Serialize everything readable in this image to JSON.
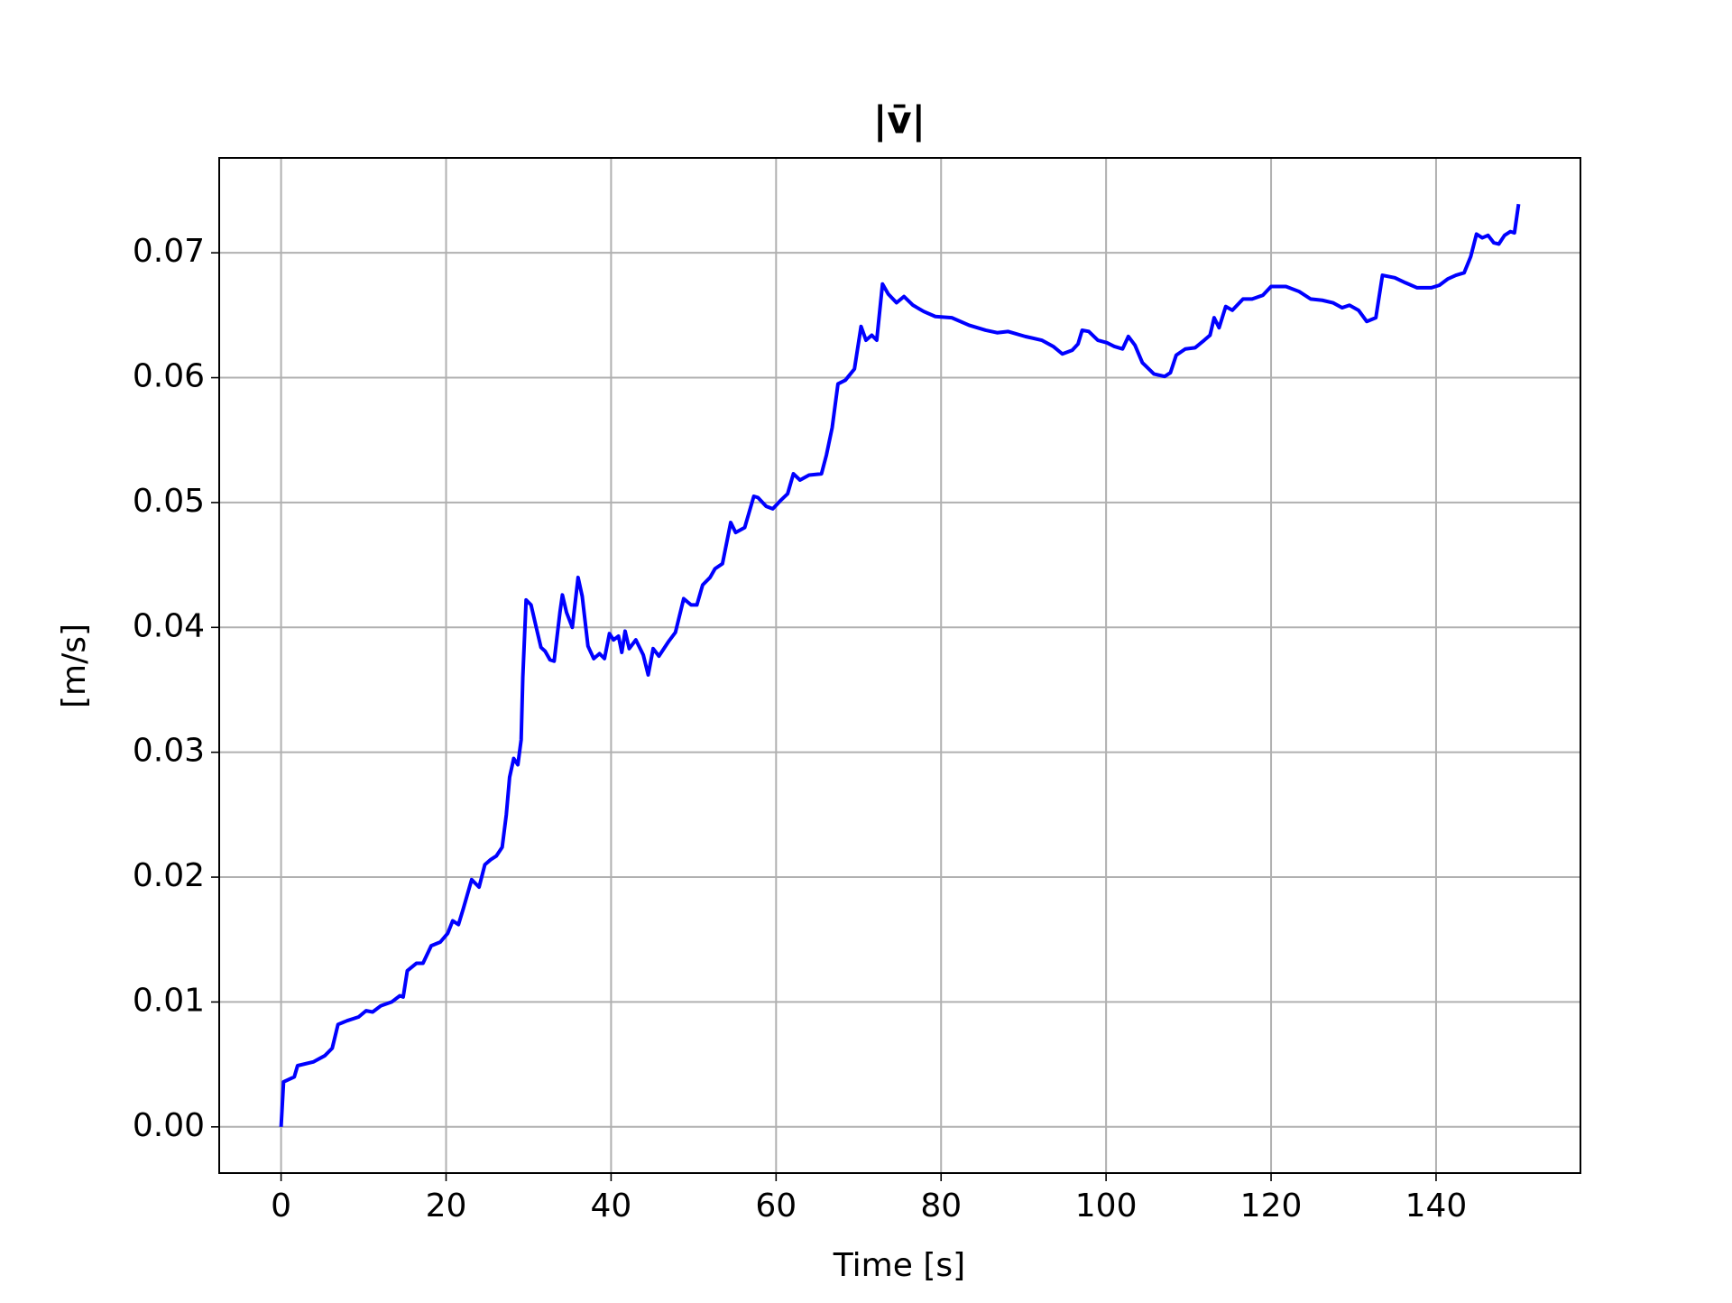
{
  "chart_data": {
    "type": "line",
    "title": "|v̄|",
    "xlabel": "Time [s]",
    "ylabel": "[m/s]",
    "xlim": [
      -7.5,
      157.5
    ],
    "ylim": [
      -0.0037,
      0.0776
    ],
    "xticks": [
      0,
      20,
      40,
      60,
      80,
      100,
      120,
      140
    ],
    "yticks": [
      {
        "value": 0,
        "label": "0.00"
      },
      0.01,
      0.02,
      0.03,
      0.04,
      0.05,
      0.06,
      0.07
    ],
    "grid": true,
    "series": [
      {
        "color": "#0000ff",
        "x": [
          0,
          0.3,
          1.6,
          2.0,
          3.9,
          5.3,
          6.2,
          6.9,
          8.0,
          9.4,
          10.3,
          11.1,
          12.1,
          13.4,
          14.4,
          14.8,
          15.3,
          16.4,
          17.2,
          18.2,
          19.3,
          20.2,
          20.8,
          21.5,
          22.1,
          23.1,
          24.0,
          24.7,
          25.4,
          26.1,
          26.8,
          27.3,
          27.7,
          28.2,
          28.7,
          29.1,
          29.3,
          29.7,
          30.3,
          31.0,
          31.5,
          32.0,
          32.6,
          33.1,
          33.8,
          34.1,
          34.6,
          35.3,
          36.0,
          36.5,
          37.2,
          37.9,
          38.6,
          39.2,
          39.8,
          40.3,
          40.9,
          41.3,
          41.7,
          42.2,
          43.0,
          43.9,
          44.5,
          45.1,
          45.8,
          47.0,
          47.8,
          48.8,
          49.7,
          50.4,
          51.1,
          52.0,
          52.6,
          53.5,
          54.5,
          55.1,
          56.2,
          57.3,
          57.8,
          58.8,
          59.6,
          60.6,
          61.4,
          62.1,
          62.9,
          64.0,
          65.5,
          66.1,
          66.8,
          67.5,
          68.4,
          69.5,
          70.3,
          70.9,
          71.6,
          72.2,
          72.9,
          73.6,
          74.6,
          75.5,
          76.6,
          77.9,
          79.3,
          81.3,
          83.4,
          85.4,
          86.8,
          88.1,
          90.2,
          92.2,
          93.6,
          94.7,
          95.9,
          96.6,
          97.1,
          97.9,
          99.0,
          100.1,
          101.0,
          102.0,
          102.7,
          103.5,
          104.4,
          105.8,
          107.1,
          107.8,
          108.5,
          109.6,
          110.8,
          111.9,
          112.6,
          113.1,
          113.7,
          114.5,
          115.3,
          116.6,
          117.7,
          119.0,
          120.0,
          121.8,
          123.4,
          124.8,
          126.2,
          127.5,
          128.6,
          129.5,
          130.6,
          131.6,
          132.7,
          133.5,
          135.0,
          136.3,
          137.7,
          139.4,
          140.4,
          141.4,
          142.4,
          143.4,
          144.2,
          144.9,
          145.6,
          146.3,
          147.0,
          147.6,
          148.3,
          149.0,
          149.5,
          150.0
        ],
        "values": [
          0,
          0.0036,
          0.004,
          0.0049,
          0.0052,
          0.0057,
          0.0063,
          0.0082,
          0.0085,
          0.0088,
          0.0093,
          0.0092,
          0.0097,
          0.01,
          0.0105,
          0.0104,
          0.0125,
          0.0131,
          0.0131,
          0.0145,
          0.0148,
          0.0155,
          0.0165,
          0.0162,
          0.0175,
          0.0198,
          0.0192,
          0.021,
          0.0214,
          0.0217,
          0.0224,
          0.025,
          0.028,
          0.0295,
          0.029,
          0.031,
          0.036,
          0.0422,
          0.0418,
          0.0398,
          0.0384,
          0.0381,
          0.0374,
          0.0373,
          0.0412,
          0.0426,
          0.0412,
          0.04,
          0.044,
          0.0425,
          0.0385,
          0.0375,
          0.0379,
          0.0375,
          0.0395,
          0.039,
          0.0393,
          0.038,
          0.0397,
          0.0383,
          0.039,
          0.0378,
          0.0362,
          0.0383,
          0.0377,
          0.0389,
          0.0396,
          0.0423,
          0.0418,
          0.0418,
          0.0434,
          0.044,
          0.0447,
          0.0451,
          0.0484,
          0.0476,
          0.048,
          0.0505,
          0.0504,
          0.0497,
          0.0495,
          0.0502,
          0.0507,
          0.0523,
          0.0518,
          0.0522,
          0.0523,
          0.0538,
          0.056,
          0.0595,
          0.0598,
          0.0607,
          0.0641,
          0.063,
          0.0634,
          0.063,
          0.0675,
          0.0667,
          0.066,
          0.0665,
          0.0658,
          0.0653,
          0.0649,
          0.0648,
          0.0642,
          0.0638,
          0.0636,
          0.0637,
          0.0633,
          0.063,
          0.0625,
          0.0619,
          0.0622,
          0.0627,
          0.0638,
          0.0637,
          0.063,
          0.0628,
          0.0625,
          0.0623,
          0.0633,
          0.0626,
          0.0612,
          0.0603,
          0.0601,
          0.0604,
          0.0618,
          0.0623,
          0.0624,
          0.063,
          0.0634,
          0.0648,
          0.064,
          0.0657,
          0.0654,
          0.0663,
          0.0663,
          0.0666,
          0.0673,
          0.0673,
          0.0669,
          0.0663,
          0.0662,
          0.066,
          0.0656,
          0.0658,
          0.0654,
          0.0645,
          0.0648,
          0.0682,
          0.068,
          0.0676,
          0.0672,
          0.0672,
          0.0674,
          0.0679,
          0.0682,
          0.0684,
          0.0697,
          0.0715,
          0.0712,
          0.0714,
          0.0708,
          0.0707,
          0.0714,
          0.0717,
          0.0716,
          0.0739
        ]
      }
    ]
  }
}
